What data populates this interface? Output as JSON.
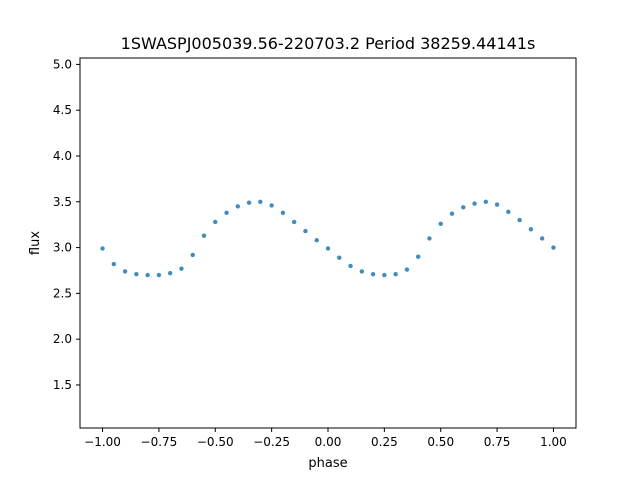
{
  "chart_data": {
    "type": "scatter",
    "title": "1SWASPJ005039.56-220703.2 Period 38259.44141s",
    "xlabel": "phase",
    "ylabel": "flux",
    "xlim": [
      -1.1,
      1.1
    ],
    "ylim": [
      1.03,
      5.07
    ],
    "x_ticks": [
      -1.0,
      -0.75,
      -0.5,
      -0.25,
      0.0,
      0.25,
      0.5,
      0.75,
      1.0
    ],
    "x_tick_labels": [
      "−1.00",
      "−0.75",
      "−0.50",
      "−0.25",
      "0.00",
      "0.25",
      "0.50",
      "0.75",
      "1.00"
    ],
    "y_ticks": [
      1.5,
      2.0,
      2.5,
      3.0,
      3.5,
      4.0,
      4.5,
      5.0
    ],
    "y_tick_labels": [
      "1.5",
      "2.0",
      "2.5",
      "3.0",
      "3.5",
      "4.0",
      "4.5",
      "5.0"
    ],
    "grid": false,
    "legend": "none",
    "series": [
      {
        "color": "#1f77b4",
        "points": [
          [
            -1.0,
            2.99
          ],
          [
            -0.95,
            2.82
          ],
          [
            -0.9,
            2.74
          ],
          [
            -0.85,
            2.71
          ],
          [
            -0.8,
            2.7
          ],
          [
            -0.75,
            2.7
          ],
          [
            -0.7,
            2.72
          ],
          [
            -0.65,
            2.77
          ],
          [
            -0.6,
            2.92
          ],
          [
            -0.55,
            3.13
          ],
          [
            -0.5,
            3.28
          ],
          [
            -0.45,
            3.38
          ],
          [
            -0.4,
            3.45
          ],
          [
            -0.35,
            3.49
          ],
          [
            -0.3,
            3.5
          ],
          [
            -0.25,
            3.46
          ],
          [
            -0.2,
            3.38
          ],
          [
            -0.15,
            3.28
          ],
          [
            -0.1,
            3.18
          ],
          [
            -0.05,
            3.08
          ],
          [
            0.0,
            2.99
          ],
          [
            0.05,
            2.89
          ],
          [
            0.1,
            2.8
          ],
          [
            0.15,
            2.74
          ],
          [
            0.2,
            2.71
          ],
          [
            0.25,
            2.7
          ],
          [
            0.3,
            2.71
          ],
          [
            0.35,
            2.76
          ],
          [
            0.4,
            2.9
          ],
          [
            0.45,
            3.1
          ],
          [
            0.5,
            3.26
          ],
          [
            0.55,
            3.37
          ],
          [
            0.6,
            3.44
          ],
          [
            0.65,
            3.48
          ],
          [
            0.7,
            3.5
          ],
          [
            0.75,
            3.47
          ],
          [
            0.8,
            3.39
          ],
          [
            0.85,
            3.3
          ],
          [
            0.9,
            3.2
          ],
          [
            0.95,
            3.1
          ],
          [
            1.0,
            3.0
          ]
        ]
      }
    ]
  }
}
